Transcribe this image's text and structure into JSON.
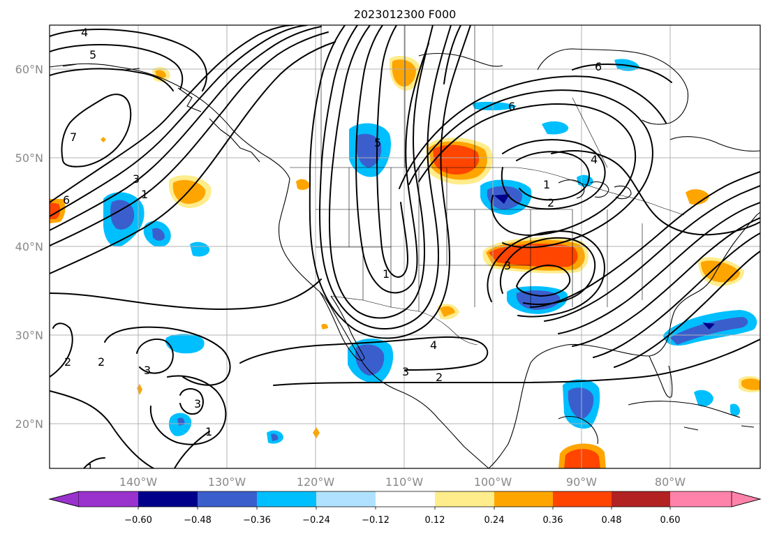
{
  "title": "2023012300 F000",
  "lat_labels": [
    "60°N",
    "50°N",
    "40°N",
    "30°N",
    "20°N"
  ],
  "lon_labels": [
    "140°W",
    "130°W",
    "120°W",
    "110°W",
    "100°W",
    "90°W",
    "80°W"
  ],
  "colorbar": {
    "labels": [
      "−0.60",
      "−0.48",
      "−0.36",
      "−0.24",
      "−0.12",
      "0.12",
      "0.24",
      "0.36",
      "0.48",
      "0.60"
    ],
    "colors": [
      "#9a32cd",
      "#00008b",
      "#3a5fcd",
      "#00bfff",
      "#b0e2ff",
      "#ffffff",
      "#ffec8b",
      "#ffa500",
      "#ff4500",
      "#b22222",
      "#ff82ab"
    ]
  },
  "contour_labels": [
    "4",
    "5",
    "7",
    "6",
    "5",
    "3",
    "1",
    "6",
    "4",
    "1",
    "2",
    "3",
    "1",
    "2",
    "2",
    "3",
    "3",
    "1",
    "4",
    "3",
    "2",
    "6",
    "1"
  ],
  "colors": {
    "coast": "#000000",
    "grid": "#b0b0b0",
    "contour": "#000000"
  }
}
